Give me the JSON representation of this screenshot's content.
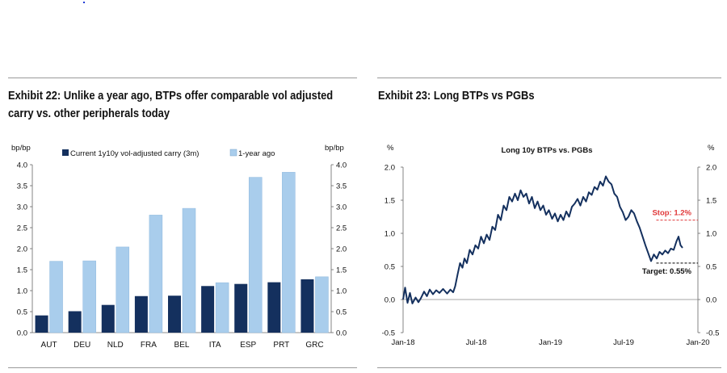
{
  "left_exhibit": {
    "title_line1": "Exhibit 22: Unlike a year ago, BTPs offer comparable vol adjusted",
    "title_line2": "carry vs. other peripherals today"
  },
  "right_exhibit": {
    "title": "Exhibit 23: Long BTPs vs PGBs"
  },
  "colors": {
    "current_series": "#14305e",
    "year_ago_series": "#a9cdec",
    "line_series": "#14305e",
    "stop_line": "#e0383a",
    "target_line": "#000000",
    "rule": "#9a9a9a"
  },
  "chart_data": [
    {
      "type": "bar",
      "title": "",
      "ylabel_left": "bp/bp",
      "ylabel_right": "bp/bp",
      "ylim": [
        0,
        4
      ],
      "yticks": [
        "0.0",
        "0.5",
        "1.0",
        "1.5",
        "2.0",
        "2.5",
        "3.0",
        "3.5",
        "4.0"
      ],
      "legend_position": "top",
      "grid": false,
      "categories": [
        "AUT",
        "DEU",
        "NLD",
        "FRA",
        "BEL",
        "ITA",
        "ESP",
        "PRT",
        "GRC"
      ],
      "series": [
        {
          "name": "Current 1y10y vol-adjusted carry (3m)",
          "values": [
            0.41,
            0.51,
            0.66,
            0.87,
            0.88,
            1.11,
            1.16,
            1.2,
            1.27
          ]
        },
        {
          "name": "1-year ago",
          "values": [
            1.7,
            1.71,
            2.04,
            2.8,
            2.96,
            1.19,
            3.7,
            3.82,
            1.33
          ]
        }
      ]
    },
    {
      "type": "line",
      "title": "Long 10y BTPs vs. PGBs",
      "ylabel_left": "%",
      "ylabel_right": "%",
      "ylim": [
        -0.5,
        2.0
      ],
      "yticks": [
        "-0.5",
        "0.0",
        "0.5",
        "1.0",
        "1.5",
        "2.0"
      ],
      "xlim": [
        "2018-01-01",
        "2020-01-01"
      ],
      "xticks": [
        {
          "date": "2018-01-01",
          "label": "Jan-18"
        },
        {
          "date": "2018-07-01",
          "label": "Jul-18"
        },
        {
          "date": "2019-01-01",
          "label": "Jan-19"
        },
        {
          "date": "2019-07-01",
          "label": "Jul-19"
        },
        {
          "date": "2020-01-01",
          "label": "Jan-20"
        }
      ],
      "grid": false,
      "series": [
        {
          "points": [
            [
              "2018-01-01",
              0.0
            ],
            [
              "2018-01-06",
              0.18
            ],
            [
              "2018-01-12",
              -0.05
            ],
            [
              "2018-01-18",
              0.1
            ],
            [
              "2018-01-24",
              -0.06
            ],
            [
              "2018-02-01",
              0.03
            ],
            [
              "2018-02-08",
              -0.04
            ],
            [
              "2018-02-14",
              0.02
            ],
            [
              "2018-02-22",
              0.12
            ],
            [
              "2018-03-01",
              0.05
            ],
            [
              "2018-03-08",
              0.15
            ],
            [
              "2018-03-16",
              0.08
            ],
            [
              "2018-03-24",
              0.14
            ],
            [
              "2018-04-01",
              0.1
            ],
            [
              "2018-04-10",
              0.16
            ],
            [
              "2018-04-20",
              0.09
            ],
            [
              "2018-04-28",
              0.15
            ],
            [
              "2018-05-05",
              0.11
            ],
            [
              "2018-05-10",
              0.2
            ],
            [
              "2018-05-16",
              0.38
            ],
            [
              "2018-05-22",
              0.55
            ],
            [
              "2018-05-28",
              0.48
            ],
            [
              "2018-06-02",
              0.62
            ],
            [
              "2018-06-08",
              0.55
            ],
            [
              "2018-06-15",
              0.75
            ],
            [
              "2018-06-22",
              0.68
            ],
            [
              "2018-06-29",
              0.82
            ],
            [
              "2018-07-06",
              0.77
            ],
            [
              "2018-07-13",
              0.95
            ],
            [
              "2018-07-20",
              0.85
            ],
            [
              "2018-07-27",
              0.98
            ],
            [
              "2018-08-03",
              0.9
            ],
            [
              "2018-08-10",
              1.1
            ],
            [
              "2018-08-17",
              1.05
            ],
            [
              "2018-08-24",
              1.28
            ],
            [
              "2018-08-31",
              1.2
            ],
            [
              "2018-09-07",
              1.42
            ],
            [
              "2018-09-14",
              1.35
            ],
            [
              "2018-09-21",
              1.55
            ],
            [
              "2018-09-28",
              1.48
            ],
            [
              "2018-10-05",
              1.6
            ],
            [
              "2018-10-12",
              1.5
            ],
            [
              "2018-10-19",
              1.65
            ],
            [
              "2018-10-26",
              1.55
            ],
            [
              "2018-11-02",
              1.6
            ],
            [
              "2018-11-09",
              1.45
            ],
            [
              "2018-11-16",
              1.55
            ],
            [
              "2018-11-23",
              1.38
            ],
            [
              "2018-11-30",
              1.48
            ],
            [
              "2018-12-07",
              1.35
            ],
            [
              "2018-12-14",
              1.42
            ],
            [
              "2018-12-21",
              1.28
            ],
            [
              "2018-12-28",
              1.35
            ],
            [
              "2019-01-05",
              1.22
            ],
            [
              "2019-01-12",
              1.3
            ],
            [
              "2019-01-19",
              1.18
            ],
            [
              "2019-01-26",
              1.28
            ],
            [
              "2019-02-02",
              1.2
            ],
            [
              "2019-02-09",
              1.33
            ],
            [
              "2019-02-16",
              1.25
            ],
            [
              "2019-02-23",
              1.4
            ],
            [
              "2019-03-02",
              1.45
            ],
            [
              "2019-03-09",
              1.52
            ],
            [
              "2019-03-16",
              1.42
            ],
            [
              "2019-03-23",
              1.55
            ],
            [
              "2019-03-30",
              1.48
            ],
            [
              "2019-04-06",
              1.62
            ],
            [
              "2019-04-13",
              1.58
            ],
            [
              "2019-04-20",
              1.7
            ],
            [
              "2019-04-27",
              1.66
            ],
            [
              "2019-05-04",
              1.78
            ],
            [
              "2019-05-11",
              1.72
            ],
            [
              "2019-05-18",
              1.86
            ],
            [
              "2019-05-25",
              1.78
            ],
            [
              "2019-06-01",
              1.74
            ],
            [
              "2019-06-08",
              1.6
            ],
            [
              "2019-06-15",
              1.55
            ],
            [
              "2019-06-22",
              1.4
            ],
            [
              "2019-06-29",
              1.32
            ],
            [
              "2019-07-06",
              1.2
            ],
            [
              "2019-07-13",
              1.25
            ],
            [
              "2019-07-20",
              1.35
            ],
            [
              "2019-07-27",
              1.3
            ],
            [
              "2019-08-03",
              1.18
            ],
            [
              "2019-08-10",
              1.08
            ],
            [
              "2019-08-17",
              0.95
            ],
            [
              "2019-08-24",
              0.82
            ],
            [
              "2019-08-31",
              0.7
            ],
            [
              "2019-09-07",
              0.58
            ],
            [
              "2019-09-14",
              0.68
            ],
            [
              "2019-09-21",
              0.62
            ],
            [
              "2019-09-28",
              0.72
            ],
            [
              "2019-10-05",
              0.68
            ],
            [
              "2019-10-12",
              0.74
            ],
            [
              "2019-10-19",
              0.7
            ],
            [
              "2019-10-26",
              0.77
            ],
            [
              "2019-11-02",
              0.75
            ],
            [
              "2019-11-09",
              0.88
            ],
            [
              "2019-11-14",
              0.95
            ],
            [
              "2019-11-19",
              0.82
            ],
            [
              "2019-11-24",
              0.78
            ]
          ]
        }
      ],
      "annotations": [
        {
          "label": "Stop: 1.2%",
          "value": 1.2,
          "style": "dashed",
          "color": "#e0383a"
        },
        {
          "label": "Target: 0.55%",
          "value": 0.55,
          "style": "dashed",
          "color": "#000000"
        }
      ]
    }
  ]
}
